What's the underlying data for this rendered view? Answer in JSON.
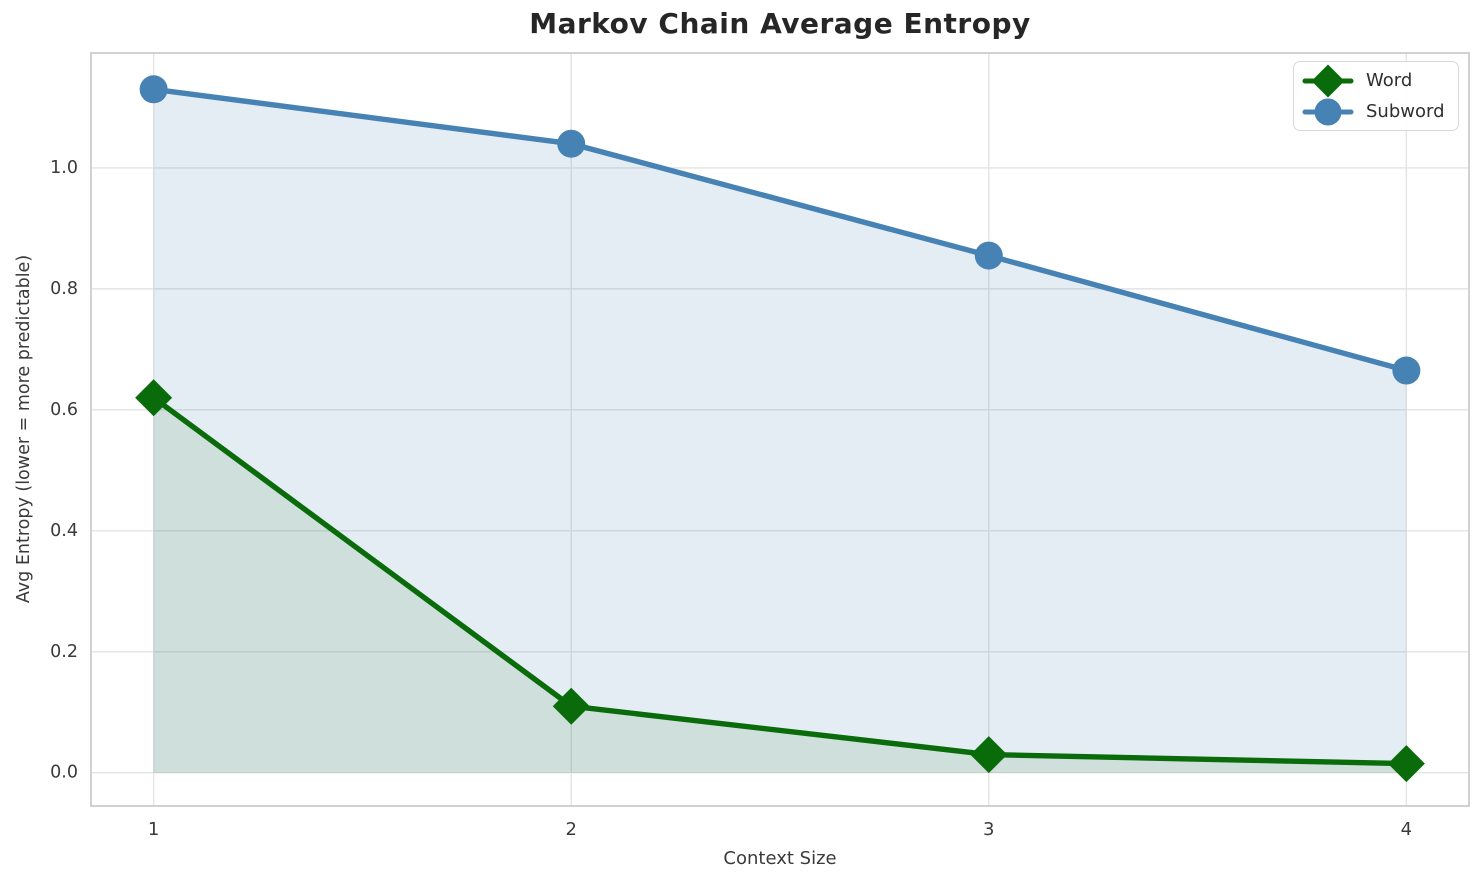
{
  "chart_data": {
    "type": "line",
    "title": "Markov Chain Average Entropy",
    "xlabel": "Context Size",
    "ylabel": "Avg Entropy (lower = more predictable)",
    "x": [
      1,
      2,
      3,
      4
    ],
    "series": [
      {
        "name": "Word",
        "values": [
          0.62,
          0.11,
          0.03,
          0.015
        ],
        "color": "#0a6b0a",
        "marker": "diamond",
        "fill_to_zero": true,
        "fill_alpha": 0.1
      },
      {
        "name": "Subword",
        "values": [
          1.13,
          1.04,
          0.855,
          0.665
        ],
        "color": "#4682b4",
        "marker": "circle",
        "fill_to_zero": true,
        "fill_alpha": 0.14
      }
    ],
    "xtick_values": [
      1,
      2,
      3,
      4
    ],
    "xtick_labels": [
      "1",
      "2",
      "3",
      "4"
    ],
    "ytick_values": [
      0.0,
      0.2,
      0.4,
      0.6,
      0.8,
      1.0
    ],
    "ytick_labels": [
      "0.0",
      "0.2",
      "0.4",
      "0.6",
      "0.8",
      "1.0"
    ],
    "xlim": [
      0.85,
      4.15
    ],
    "ylim": [
      -0.055,
      1.19
    ],
    "grid": true,
    "legend_position": "upper right",
    "style": {
      "grid_color": "#e3e3e3",
      "spine_color": "#cccccc",
      "tick_text_color": "#3a3a3a",
      "title_color": "#262626",
      "background_color": "#ffffff"
    }
  }
}
